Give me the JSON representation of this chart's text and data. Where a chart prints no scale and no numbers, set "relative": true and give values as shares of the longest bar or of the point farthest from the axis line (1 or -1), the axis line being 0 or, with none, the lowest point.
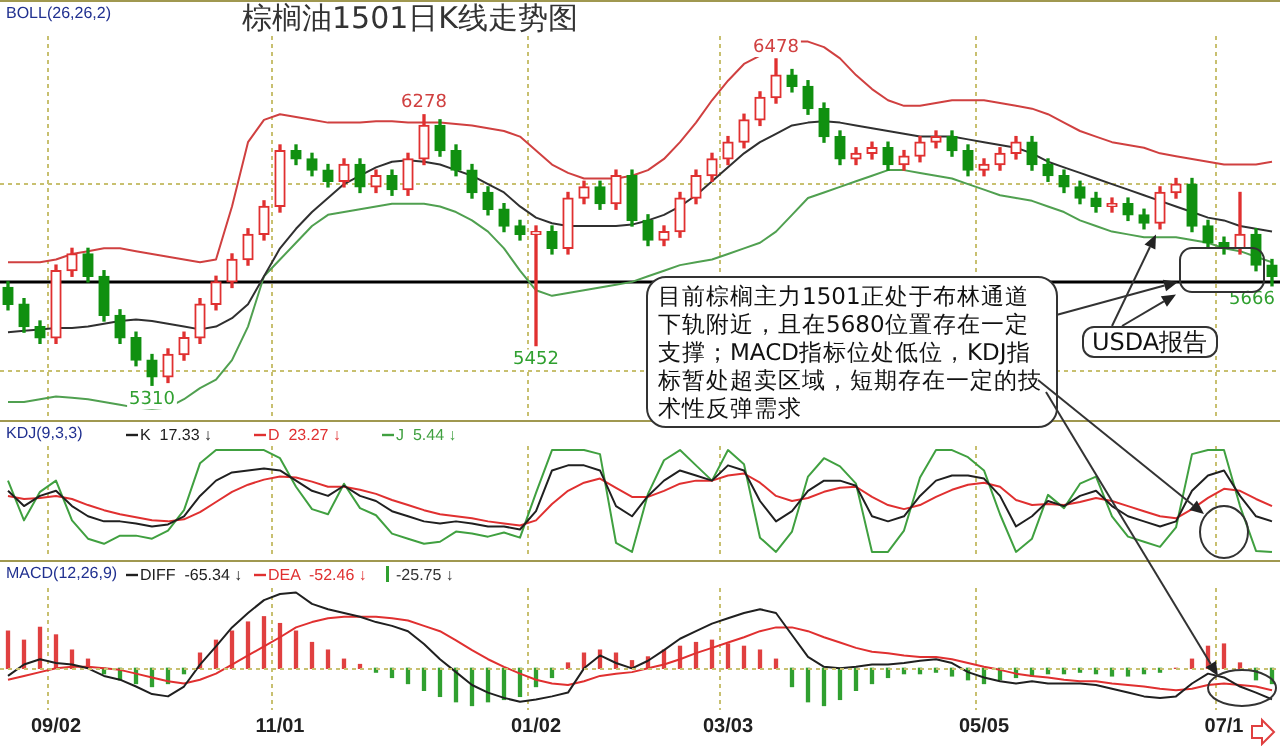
{
  "chart_data": [
    {
      "type": "candlestick",
      "title": "棕榈油1501日K线走势图",
      "categories": [
        null,
        null,
        null,
        null,
        null,
        null,
        null,
        null,
        null,
        null,
        null,
        null,
        null,
        null,
        null,
        null,
        null,
        null,
        null,
        null,
        null,
        null,
        null,
        null,
        null,
        null,
        null,
        null,
        null,
        null,
        null,
        null,
        null,
        null,
        null,
        null,
        null,
        null,
        null,
        null,
        null,
        null,
        null,
        null,
        null,
        null,
        null,
        null,
        null,
        null,
        null,
        null,
        null,
        null,
        null,
        null,
        null,
        null,
        null,
        null,
        null,
        null,
        null,
        null,
        null,
        null,
        null,
        null,
        null,
        null,
        null,
        null,
        null,
        null,
        null,
        null,
        null,
        null,
        null,
        null
      ],
      "ohlc": [
        [
          5660,
          5680,
          5580,
          5600
        ],
        [
          5600,
          5620,
          5500,
          5520
        ],
        [
          5520,
          5540,
          5460,
          5480
        ],
        [
          5480,
          5740,
          5460,
          5720
        ],
        [
          5720,
          5800,
          5700,
          5780
        ],
        [
          5780,
          5800,
          5680,
          5700
        ],
        [
          5700,
          5720,
          5540,
          5560
        ],
        [
          5560,
          5580,
          5460,
          5480
        ],
        [
          5480,
          5500,
          5380,
          5400
        ],
        [
          5400,
          5420,
          5310,
          5340
        ],
        [
          5340,
          5440,
          5320,
          5420
        ],
        [
          5420,
          5500,
          5400,
          5480
        ],
        [
          5480,
          5620,
          5460,
          5600
        ],
        [
          5600,
          5700,
          5580,
          5680
        ],
        [
          5680,
          5780,
          5660,
          5760
        ],
        [
          5760,
          5870,
          5740,
          5850
        ],
        [
          5850,
          5970,
          5830,
          5950
        ],
        [
          5950,
          6170,
          5930,
          6150
        ],
        [
          6150,
          6170,
          6100,
          6120
        ],
        [
          6120,
          6140,
          6060,
          6080
        ],
        [
          6080,
          6100,
          6020,
          6040
        ],
        [
          6040,
          6120,
          6020,
          6100
        ],
        [
          6100,
          6120,
          6000,
          6020
        ],
        [
          6020,
          6080,
          6000,
          6060
        ],
        [
          6060,
          6080,
          5990,
          6010
        ],
        [
          6010,
          6140,
          5990,
          6120
        ],
        [
          6120,
          6278,
          6100,
          6240
        ],
        [
          6240,
          6260,
          6130,
          6150
        ],
        [
          6150,
          6170,
          6060,
          6080
        ],
        [
          6080,
          6100,
          5980,
          6000
        ],
        [
          6000,
          6020,
          5920,
          5940
        ],
        [
          5940,
          5960,
          5860,
          5880
        ],
        [
          5880,
          5900,
          5830,
          5850
        ],
        [
          5850,
          5880,
          5452,
          5860
        ],
        [
          5860,
          5880,
          5780,
          5800
        ],
        [
          5800,
          6000,
          5780,
          5980
        ],
        [
          5980,
          6040,
          5960,
          6020
        ],
        [
          6020,
          6040,
          5940,
          5960
        ],
        [
          5960,
          6080,
          5940,
          6060
        ],
        [
          6060,
          6080,
          5880,
          5900
        ],
        [
          5900,
          5920,
          5810,
          5830
        ],
        [
          5830,
          5880,
          5810,
          5860
        ],
        [
          5860,
          6000,
          5840,
          5980
        ],
        [
          5980,
          6080,
          5960,
          6060
        ],
        [
          6060,
          6140,
          6040,
          6120
        ],
        [
          6120,
          6200,
          6100,
          6180
        ],
        [
          6180,
          6280,
          6160,
          6260
        ],
        [
          6260,
          6360,
          6240,
          6340
        ],
        [
          6340,
          6478,
          6320,
          6420
        ],
        [
          6420,
          6440,
          6360,
          6380
        ],
        [
          6380,
          6400,
          6280,
          6300
        ],
        [
          6300,
          6320,
          6180,
          6200
        ],
        [
          6200,
          6220,
          6100,
          6120
        ],
        [
          6120,
          6160,
          6100,
          6140
        ],
        [
          6140,
          6180,
          6120,
          6160
        ],
        [
          6160,
          6180,
          6080,
          6100
        ],
        [
          6100,
          6150,
          6080,
          6130
        ],
        [
          6130,
          6200,
          6110,
          6180
        ],
        [
          6180,
          6220,
          6160,
          6200
        ],
        [
          6200,
          6220,
          6130,
          6150
        ],
        [
          6150,
          6170,
          6060,
          6080
        ],
        [
          6080,
          6120,
          6060,
          6100
        ],
        [
          6100,
          6160,
          6080,
          6140
        ],
        [
          6140,
          6200,
          6120,
          6180
        ],
        [
          6180,
          6200,
          6080,
          6100
        ],
        [
          6100,
          6120,
          6040,
          6060
        ],
        [
          6060,
          6080,
          6000,
          6020
        ],
        [
          6020,
          6040,
          5960,
          5980
        ],
        [
          5980,
          6000,
          5930,
          5950
        ],
        [
          5950,
          5980,
          5930,
          5960
        ],
        [
          5960,
          5980,
          5900,
          5920
        ],
        [
          5920,
          5940,
          5870,
          5890
        ],
        [
          5890,
          6020,
          5870,
          6000
        ],
        [
          6000,
          6050,
          5980,
          6030
        ],
        [
          6030,
          6050,
          5860,
          5880
        ],
        [
          5880,
          5900,
          5800,
          5820
        ],
        [
          5820,
          5840,
          5780,
          5800
        ],
        [
          5800,
          6000,
          5780,
          5850
        ],
        [
          5850,
          5870,
          5720,
          5740
        ],
        [
          5740,
          5760,
          5666,
          5700
        ]
      ],
      "series": [
        {
          "type": "line",
          "color": "#d04040",
          "values": [
            5750,
            5750,
            5750,
            5760,
            5780,
            5790,
            5800,
            5800,
            5790,
            5780,
            5770,
            5760,
            5750,
            5760,
            5950,
            6180,
            6260,
            6280,
            6270,
            6260,
            6250,
            6250,
            6250,
            6255,
            6255,
            6250,
            6250,
            6250,
            6245,
            6240,
            6230,
            6220,
            6200,
            6150,
            6100,
            6070,
            6050,
            6050,
            6050,
            6060,
            6080,
            6120,
            6180,
            6250,
            6330,
            6400,
            6460,
            6490,
            6520,
            6540,
            6540,
            6520,
            6480,
            6420,
            6370,
            6330,
            6310,
            6310,
            6320,
            6330,
            6330,
            6330,
            6320,
            6310,
            6300,
            6280,
            6250,
            6220,
            6200,
            6180,
            6170,
            6160,
            6140,
            6130,
            6120,
            6110,
            6100,
            6100,
            6100,
            6110
          ]
        },
        {
          "type": "line",
          "color": "#303030",
          "values": [
            5500,
            5505,
            5510,
            5515,
            5515,
            5520,
            5530,
            5540,
            5545,
            5540,
            5530,
            5520,
            5510,
            5520,
            5550,
            5600,
            5700,
            5800,
            5870,
            5930,
            5980,
            6030,
            6060,
            6090,
            6110,
            6115,
            6110,
            6100,
            6080,
            6060,
            6030,
            6000,
            5950,
            5910,
            5890,
            5880,
            5880,
            5880,
            5880,
            5885,
            5900,
            5920,
            5950,
            5990,
            6040,
            6090,
            6140,
            6180,
            6210,
            6240,
            6250,
            6255,
            6250,
            6240,
            6230,
            6220,
            6210,
            6200,
            6200,
            6200,
            6190,
            6180,
            6170,
            6160,
            6140,
            6110,
            6090,
            6070,
            6050,
            6030,
            6010,
            5990,
            5970,
            5950,
            5930,
            5910,
            5900,
            5880,
            5870,
            5860
          ]
        },
        {
          "type": "line",
          "color": "#50a050",
          "values": [
            5250,
            5250,
            5260,
            5270,
            5265,
            5260,
            5250,
            5240,
            5230,
            5225,
            5230,
            5260,
            5300,
            5330,
            5400,
            5520,
            5700,
            5760,
            5820,
            5880,
            5920,
            5930,
            5940,
            5950,
            5960,
            5960,
            5960,
            5950,
            5930,
            5900,
            5860,
            5800,
            5720,
            5650,
            5630,
            5640,
            5650,
            5660,
            5670,
            5680,
            5700,
            5720,
            5740,
            5750,
            5760,
            5780,
            5800,
            5820,
            5860,
            5920,
            5980,
            6000,
            6020,
            6040,
            6060,
            6080,
            6080,
            6070,
            6060,
            6050,
            6030,
            6010,
            5990,
            5980,
            5970,
            5950,
            5930,
            5900,
            5880,
            5860,
            5850,
            5840,
            5840,
            5840,
            5830,
            5820,
            5800,
            5790,
            5770,
            5750
          ]
        }
      ],
      "ylim": [
        5200,
        6560
      ],
      "yticks": [
        {
          "value": 6030,
          "label": null
        },
        {
          "value": 5360,
          "label": null
        }
      ],
      "grid": true,
      "tick_labels": false,
      "ref_lines": [
        {
          "axis": "y",
          "value": 5680,
          "color": "#000000"
        }
      ],
      "annotations": [
        "BOLL(26,26,2)",
        {
          "text": "目前棕榈主力1501正处于布林通道下轨附近，且在5680位置存在一定支撑；MACD指标位处低位，KDJ指标暂处超卖区域，短期存在一定的技术性反弹需求",
          "y": 5680
        },
        {
          "text": "USDA报告",
          "y": 5850
        },
        {
          "text": "6278",
          "y": 6278
        },
        {
          "text": "6478",
          "y": 6478
        },
        {
          "text": "5310",
          "y": 5310
        },
        {
          "text": "5452",
          "y": 5452
        },
        {
          "text": "5666",
          "y": 5666
        }
      ]
    },
    {
      "type": "line",
      "relative": true,
      "marker": "none",
      "grid": "x",
      "tick_labels": false,
      "legend": "top left",
      "categories": [
        null,
        null,
        null,
        null,
        null,
        null,
        null,
        null,
        null,
        null,
        null,
        null,
        null,
        null,
        null,
        null,
        null,
        null,
        null,
        null,
        null,
        null,
        null,
        null,
        null,
        null,
        null,
        null,
        null,
        null,
        null,
        null,
        null,
        null,
        null,
        null,
        null,
        null,
        null,
        null,
        null,
        null,
        null,
        null,
        null,
        null,
        null,
        null,
        null,
        null,
        null,
        null,
        null,
        null,
        null,
        null,
        null,
        null,
        null,
        null,
        null,
        null,
        null,
        null,
        null,
        null,
        null,
        null,
        null,
        null,
        null,
        null,
        null,
        null,
        null,
        null,
        null,
        null,
        null,
        null
      ],
      "annotations": [
        "KDJ(9,3,3)"
      ],
      "series": [
        {
          "name": "K  17.33 ↓",
          "color": "#202020",
          "values": [
            0.6,
            0.45,
            0.55,
            0.6,
            0.45,
            0.35,
            0.3,
            0.3,
            0.28,
            0.25,
            0.27,
            0.35,
            0.55,
            0.7,
            0.78,
            0.8,
            0.82,
            0.8,
            0.7,
            0.6,
            0.55,
            0.65,
            0.55,
            0.5,
            0.4,
            0.35,
            0.3,
            0.28,
            0.3,
            0.28,
            0.25,
            0.25,
            0.22,
            0.4,
            0.8,
            0.85,
            0.85,
            0.8,
            0.45,
            0.35,
            0.55,
            0.7,
            0.8,
            0.75,
            0.7,
            0.85,
            0.8,
            0.5,
            0.3,
            0.4,
            0.6,
            0.7,
            0.7,
            0.65,
            0.35,
            0.3,
            0.35,
            0.55,
            0.7,
            0.75,
            0.75,
            0.72,
            0.55,
            0.25,
            0.35,
            0.5,
            0.45,
            0.55,
            0.6,
            0.45,
            0.35,
            0.3,
            0.25,
            0.3,
            0.6,
            0.75,
            0.8,
            0.55,
            0.35,
            0.3
          ]
        },
        {
          "name": "D  23.27 ↓",
          "color": "#e03030",
          "values": [
            0.55,
            0.52,
            0.53,
            0.55,
            0.52,
            0.46,
            0.41,
            0.37,
            0.34,
            0.31,
            0.3,
            0.32,
            0.39,
            0.49,
            0.59,
            0.66,
            0.71,
            0.74,
            0.73,
            0.69,
            0.64,
            0.64,
            0.61,
            0.57,
            0.51,
            0.46,
            0.41,
            0.37,
            0.35,
            0.33,
            0.3,
            0.28,
            0.26,
            0.31,
            0.47,
            0.6,
            0.68,
            0.72,
            0.63,
            0.54,
            0.54,
            0.6,
            0.67,
            0.7,
            0.7,
            0.75,
            0.77,
            0.68,
            0.55,
            0.5,
            0.53,
            0.59,
            0.63,
            0.64,
            0.54,
            0.46,
            0.42,
            0.46,
            0.54,
            0.61,
            0.66,
            0.68,
            0.64,
            0.51,
            0.46,
            0.47,
            0.46,
            0.49,
            0.53,
            0.5,
            0.45,
            0.4,
            0.35,
            0.33,
            0.42,
            0.53,
            0.62,
            0.6,
            0.52,
            0.45
          ]
        },
        {
          "name": "J  5.44 ↓",
          "color": "#40a040",
          "values": [
            0.7,
            0.31,
            0.59,
            0.7,
            0.31,
            0.13,
            0.08,
            0.16,
            0.16,
            0.13,
            0.21,
            0.41,
            0.87,
            1,
            1,
            1,
            1,
            0.92,
            0.64,
            0.42,
            0.37,
            0.67,
            0.43,
            0.36,
            0.18,
            0.13,
            0.08,
            0.1,
            0.2,
            0.18,
            0.15,
            0.19,
            0.14,
            0.58,
            1,
            1,
            1,
            0.96,
            0.09,
            0,
            0.57,
            0.9,
            1,
            0.85,
            0.7,
            1,
            0.86,
            0.14,
            0,
            0.2,
            0.74,
            0.92,
            0.84,
            0.67,
            0,
            0,
            0.21,
            0.73,
            1,
            1,
            0.93,
            0.8,
            0.37,
            0,
            0.13,
            0.56,
            0.43,
            0.67,
            0.74,
            0.35,
            0.15,
            0.1,
            0.05,
            0.24,
            0.96,
            1,
            1,
            0.45,
            0.01,
            0
          ]
        }
      ]
    },
    {
      "type": "bar",
      "relative": true,
      "marker": "none",
      "grid": "x",
      "tick_labels": "x",
      "legend": "top left",
      "categories": [
        null,
        null,
        null,
        "09/02",
        null,
        null,
        null,
        null,
        null,
        null,
        null,
        null,
        null,
        null,
        null,
        null,
        null,
        "11/01",
        null,
        null,
        null,
        null,
        null,
        null,
        null,
        null,
        null,
        null,
        null,
        null,
        null,
        null,
        null,
        "01/02",
        null,
        null,
        null,
        null,
        null,
        null,
        null,
        null,
        null,
        null,
        null,
        "03/03",
        null,
        null,
        null,
        null,
        null,
        null,
        null,
        null,
        null,
        null,
        null,
        null,
        null,
        null,
        null,
        "05/05",
        null,
        null,
        null,
        null,
        null,
        null,
        null,
        null,
        null,
        null,
        null,
        null,
        null,
        null,
        "07/1",
        null,
        null,
        null
      ],
      "annotations": [
        "MACD(12,26,9)"
      ],
      "series": [
        {
          "name": "DIFF  -65.34 ↓",
          "type": "line",
          "color": "#202020",
          "values": [
            -0.1,
            0.05,
            0.12,
            0.07,
            0.05,
            0,
            -0.1,
            -0.15,
            -0.24,
            -0.34,
            -0.37,
            -0.24,
            0.05,
            0.29,
            0.54,
            0.73,
            0.9,
            0.98,
            1,
            0.85,
            0.78,
            0.73,
            0.68,
            0.61,
            0.56,
            0.49,
            0.32,
            0.12,
            -0.05,
            -0.22,
            -0.32,
            -0.39,
            -0.44,
            -0.41,
            -0.37,
            -0.32,
            0,
            0.17,
            0.07,
            0,
            0.1,
            0.24,
            0.39,
            0.49,
            0.59,
            0.66,
            0.73,
            0.78,
            0.73,
            0.44,
            0.15,
            0.02,
            0,
            0.02,
            0.05,
            0.05,
            0.07,
            0.1,
            0.12,
            0.07,
            -0.05,
            -0.12,
            -0.17,
            -0.2,
            -0.17,
            -0.2,
            -0.2,
            -0.2,
            -0.22,
            -0.27,
            -0.32,
            -0.37,
            -0.39,
            -0.37,
            -0.2,
            -0.07,
            -0.12,
            -0.24,
            -0.32,
            -0.41
          ]
        },
        {
          "name": "DEA  -52.46 ↓",
          "type": "line",
          "color": "#e03030",
          "values": [
            -0.15,
            -0.1,
            -0.05,
            0,
            0.02,
            0.02,
            0,
            -0.02,
            -0.07,
            -0.12,
            -0.17,
            -0.2,
            -0.15,
            -0.07,
            0.05,
            0.17,
            0.29,
            0.41,
            0.54,
            0.61,
            0.66,
            0.68,
            0.68,
            0.68,
            0.66,
            0.63,
            0.56,
            0.49,
            0.37,
            0.24,
            0.12,
            0.02,
            -0.07,
            -0.15,
            -0.2,
            -0.22,
            -0.17,
            -0.1,
            -0.07,
            -0.05,
            0,
            0.05,
            0.12,
            0.2,
            0.27,
            0.34,
            0.41,
            0.49,
            0.54,
            0.54,
            0.49,
            0.41,
            0.34,
            0.27,
            0.22,
            0.2,
            0.17,
            0.15,
            0.15,
            0.12,
            0.07,
            0.02,
            -0.02,
            -0.07,
            -0.1,
            -0.12,
            -0.15,
            -0.17,
            -0.17,
            -0.2,
            -0.22,
            -0.24,
            -0.27,
            -0.29,
            -0.27,
            -0.22,
            -0.2,
            -0.22,
            -0.24,
            -0.29
          ]
        },
        {
          "name": "-25.75 ↓",
          "type": "bar",
          "colors": [
            "#e04040",
            "#e04040",
            "#e04040",
            "#e04040",
            "#e04040",
            "#e04040",
            "#30a030",
            "#30a030",
            "#30a030",
            "#30a030",
            "#30a030",
            "#30a030",
            "#e04040",
            "#e04040",
            "#e04040",
            "#e04040",
            "#e04040",
            "#e04040",
            "#e04040",
            "#e04040",
            "#e04040",
            "#e04040",
            "#e04040",
            "#30a030",
            "#30a030",
            "#30a030",
            "#30a030",
            "#30a030",
            "#30a030",
            "#30a030",
            "#30a030",
            "#30a030",
            "#30a030",
            "#30a030",
            "#30a030",
            "#e04040",
            "#e04040",
            "#e04040",
            "#e04040",
            "#e04040",
            "#e04040",
            "#e04040",
            "#e04040",
            "#e04040",
            "#e04040",
            "#e04040",
            "#e04040",
            "#e04040",
            "#e04040",
            "#30a030",
            "#30a030",
            "#30a030",
            "#30a030",
            "#30a030",
            "#30a030",
            "#30a030",
            "#30a030",
            "#30a030",
            "#30a030",
            "#30a030",
            "#30a030",
            "#30a030",
            "#30a030",
            "#30a030",
            "#30a030",
            "#30a030",
            "#30a030",
            "#30a030",
            "#30a030",
            "#30a030",
            "#30a030",
            "#30a030",
            "#30a030",
            "#e04040",
            "#e04040",
            "#e04040",
            "#e04040",
            "#e04040",
            "#30a030",
            "#30a030"
          ],
          "values": [
            0.49,
            0.37,
            0.54,
            0.44,
            0.24,
            0.12,
            -0.07,
            -0.15,
            -0.2,
            -0.24,
            -0.2,
            -0.07,
            0.2,
            0.37,
            0.49,
            0.61,
            0.68,
            0.59,
            0.49,
            0.34,
            0.24,
            0.12,
            0.05,
            -0.05,
            -0.12,
            -0.2,
            -0.29,
            -0.37,
            -0.44,
            -0.49,
            -0.44,
            -0.41,
            -0.37,
            -0.24,
            -0.12,
            0.07,
            0.2,
            0.24,
            0.2,
            0.1,
            0.15,
            0.24,
            0.29,
            0.34,
            0.37,
            0.32,
            0.29,
            0.24,
            0.12,
            -0.24,
            -0.44,
            -0.49,
            -0.41,
            -0.29,
            -0.2,
            -0.12,
            -0.07,
            -0.07,
            -0.05,
            -0.1,
            -0.15,
            -0.2,
            -0.15,
            -0.12,
            -0.1,
            -0.07,
            -0.07,
            -0.05,
            -0.07,
            -0.1,
            -0.1,
            -0.07,
            -0.05,
            0,
            0.12,
            0.29,
            0.32,
            0.07,
            -0.15,
            -0.2
          ]
        }
      ]
    }
  ]
}
